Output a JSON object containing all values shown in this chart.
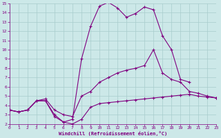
{
  "bg_color": "#cce8e8",
  "line_color": "#800080",
  "grid_color": "#a8cccc",
  "xlabel": "Windchill (Refroidissement éolien,°C)",
  "xlabel_color": "#800080",
  "xtick_color": "#800080",
  "ytick_color": "#800080",
  "ylim": [
    2,
    15
  ],
  "xlim": [
    0,
    23
  ],
  "yticks": [
    2,
    3,
    4,
    5,
    6,
    7,
    8,
    9,
    10,
    11,
    12,
    13,
    14,
    15
  ],
  "xticks": [
    0,
    1,
    2,
    3,
    4,
    5,
    6,
    7,
    8,
    9,
    10,
    11,
    12,
    13,
    14,
    15,
    16,
    17,
    18,
    19,
    20,
    21,
    22,
    23
  ],
  "series1_x": [
    0,
    1,
    2,
    3,
    4,
    5,
    6,
    7,
    8,
    9,
    10,
    11,
    12,
    13,
    14,
    15,
    16,
    17,
    18,
    19,
    20
  ],
  "series1_y": [
    3.5,
    3.3,
    3.5,
    4.5,
    4.5,
    3.0,
    2.2,
    2.5,
    9.0,
    12.5,
    14.7,
    15.1,
    14.5,
    13.5,
    13.9,
    14.6,
    14.3,
    11.5,
    10.0,
    6.8,
    6.5
  ],
  "series2_x": [
    0,
    1,
    2,
    3,
    4,
    5,
    6,
    7,
    8,
    9,
    10,
    11,
    12,
    13,
    14,
    15,
    16,
    17,
    18,
    19,
    20,
    21,
    22,
    23
  ],
  "series2_y": [
    3.5,
    3.3,
    3.5,
    4.5,
    4.5,
    2.8,
    2.2,
    2.0,
    2.5,
    3.8,
    4.2,
    4.3,
    4.4,
    4.5,
    4.6,
    4.7,
    4.8,
    4.9,
    5.0,
    5.1,
    5.2,
    5.0,
    4.9,
    4.8
  ],
  "series3_x": [
    0,
    1,
    2,
    3,
    4,
    5,
    6,
    7,
    8,
    9,
    10,
    11,
    12,
    13,
    14,
    15,
    16,
    17,
    18,
    19,
    20,
    21,
    22,
    23
  ],
  "series3_y": [
    3.5,
    3.3,
    3.5,
    4.5,
    4.7,
    3.5,
    3.0,
    2.8,
    5.0,
    5.5,
    6.5,
    7.0,
    7.5,
    7.8,
    8.0,
    8.3,
    10.0,
    7.5,
    6.8,
    6.5,
    5.5,
    5.3,
    5.0,
    4.8
  ]
}
